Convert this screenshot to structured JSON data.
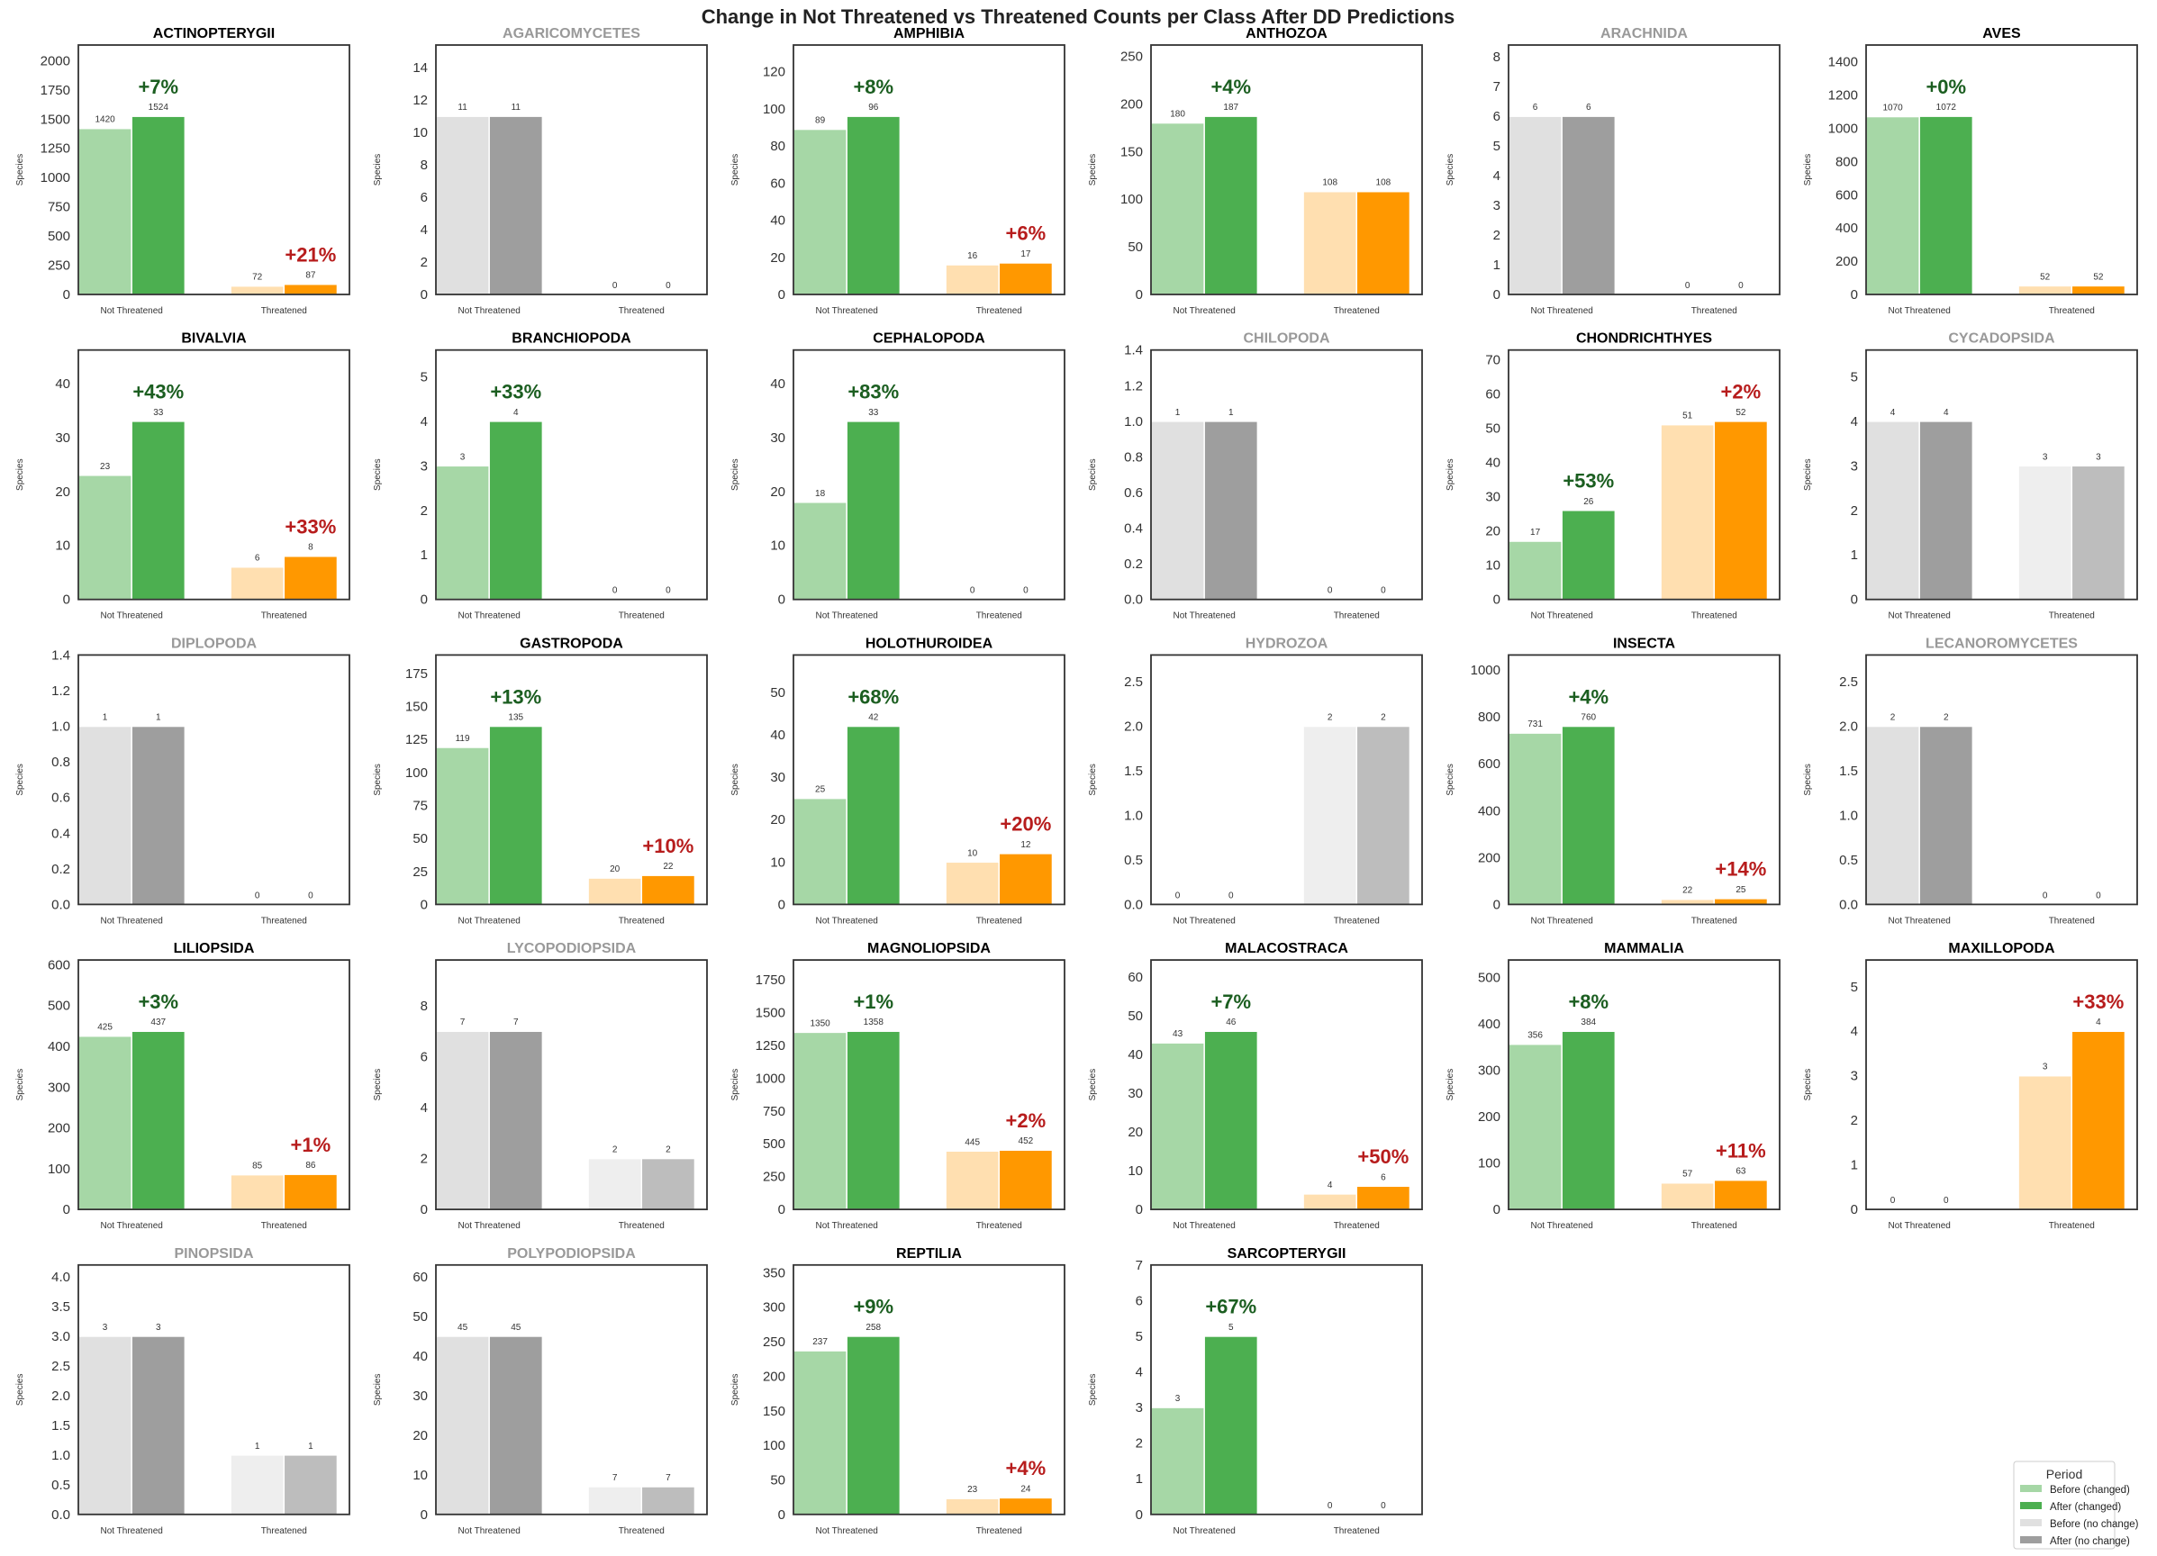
{
  "title": "Change in Not Threatened vs Threatened Counts per Class After DD Predictions",
  "legend": {
    "title": "Period",
    "entries": [
      {
        "label": "Before (changed)",
        "color": "#a6d7a6"
      },
      {
        "label": "After (changed)",
        "color": "#4caf50"
      },
      {
        "label": "Before (no change)",
        "color": "#e0e0e0"
      },
      {
        "label": "After (no change)",
        "color": "#9e9e9e"
      }
    ],
    "placement": "bottom-right"
  },
  "colors": {
    "nt_before": "#a6d7a6",
    "nt_after": "#4caf50",
    "t_before": "#ffdfb0",
    "t_after": "#ff9800",
    "nc_nt_before": "#e0e0e0",
    "nc_nt_after": "#9e9e9e",
    "nc_t_before": "#eeeeee",
    "nc_t_after": "#bdbdbd",
    "pct_up_nt": "#1b5e20",
    "pct_up_t": "#b71c1c",
    "title_changed": "#000000",
    "title_unchanged": "#999999"
  },
  "chart_data": {
    "type": "bar",
    "categories": [
      "Not Threatened",
      "Threatened"
    ],
    "ylabel": "Species",
    "grid": false,
    "panels": [
      {
        "title": "ACTINOPTERYGII",
        "changed": true,
        "nt": [
          1420,
          1524
        ],
        "t": [
          72,
          87
        ],
        "nt_pct": "+7%",
        "t_pct": "+21%",
        "ylim": [
          0,
          2134
        ],
        "yticks": [
          0,
          250,
          500,
          750,
          1000,
          1250,
          1500,
          1750,
          2000
        ]
      },
      {
        "title": "AGARICOMYCETES",
        "changed": false,
        "nt": [
          11,
          11
        ],
        "t": [
          0,
          0
        ],
        "ylim": [
          0,
          15.4
        ],
        "yticks": [
          0,
          2,
          4,
          6,
          8,
          10,
          12,
          14
        ]
      },
      {
        "title": "AMPHIBIA",
        "changed": true,
        "nt": [
          89,
          96
        ],
        "t": [
          16,
          17
        ],
        "nt_pct": "+8%",
        "t_pct": "+6%",
        "ylim": [
          0,
          134.4
        ],
        "yticks": [
          0,
          20,
          40,
          60,
          80,
          100,
          120
        ]
      },
      {
        "title": "ANTHOZOA",
        "changed": true,
        "nt": [
          180,
          187
        ],
        "t": [
          108,
          108
        ],
        "nt_pct": "+4%",
        "ylim": [
          0,
          261.8
        ],
        "yticks": [
          0,
          50,
          100,
          150,
          200,
          250
        ]
      },
      {
        "title": "ARACHNIDA",
        "changed": false,
        "nt": [
          6,
          6
        ],
        "t": [
          0,
          0
        ],
        "ylim": [
          0,
          8.4
        ],
        "yticks": [
          0,
          1,
          2,
          3,
          4,
          5,
          6,
          7,
          8
        ]
      },
      {
        "title": "AVES",
        "changed": true,
        "nt": [
          1070,
          1072
        ],
        "t": [
          52,
          52
        ],
        "nt_pct": "+0%",
        "ylim": [
          0,
          1500.8
        ],
        "yticks": [
          0,
          200,
          400,
          600,
          800,
          1000,
          1200,
          1400
        ]
      },
      {
        "title": "BIVALVIA",
        "changed": true,
        "nt": [
          23,
          33
        ],
        "t": [
          6,
          8
        ],
        "nt_pct": "+43%",
        "t_pct": "+33%",
        "ylim": [
          0,
          46.2
        ],
        "yticks": [
          0,
          10,
          20,
          30,
          40
        ]
      },
      {
        "title": "BRANCHIOPODA",
        "changed": true,
        "nt": [
          3,
          4
        ],
        "t": [
          0,
          0
        ],
        "nt_pct": "+33%",
        "ylim": [
          0,
          5.6
        ],
        "yticks": [
          0,
          1,
          2,
          3,
          4,
          5
        ]
      },
      {
        "title": "CEPHALOPODA",
        "changed": true,
        "nt": [
          18,
          33
        ],
        "t": [
          0,
          0
        ],
        "nt_pct": "+83%",
        "ylim": [
          0,
          46.2
        ],
        "yticks": [
          0,
          10,
          20,
          30,
          40
        ]
      },
      {
        "title": "CHILOPODA",
        "changed": false,
        "nt": [
          1,
          1
        ],
        "t": [
          0,
          0
        ],
        "ylim": [
          0,
          1.4
        ],
        "yticks": [
          "0.0",
          "0.2",
          "0.4",
          "0.6",
          "0.8",
          "1.0",
          "1.2",
          "1.4"
        ]
      },
      {
        "title": "CHONDRICHTHYES",
        "changed": true,
        "nt": [
          17,
          26
        ],
        "t": [
          51,
          52
        ],
        "nt_pct": "+53%",
        "t_pct": "+2%",
        "ylim": [
          0,
          72.8
        ],
        "yticks": [
          0,
          10,
          20,
          30,
          40,
          50,
          60,
          70
        ]
      },
      {
        "title": "CYCADOPSIDA",
        "changed": false,
        "nt": [
          4,
          4
        ],
        "t": [
          3,
          3
        ],
        "ylim": [
          0,
          5.6
        ],
        "yticks": [
          0,
          1,
          2,
          3,
          4,
          5
        ]
      },
      {
        "title": "DIPLOPODA",
        "changed": false,
        "nt": [
          1,
          1
        ],
        "t": [
          0,
          0
        ],
        "ylim": [
          0,
          1.4
        ],
        "yticks": [
          "0.0",
          "0.2",
          "0.4",
          "0.6",
          "0.8",
          "1.0",
          "1.2",
          "1.4"
        ]
      },
      {
        "title": "GASTROPODA",
        "changed": true,
        "nt": [
          119,
          135
        ],
        "t": [
          20,
          22
        ],
        "nt_pct": "+13%",
        "t_pct": "+10%",
        "ylim": [
          0,
          189
        ],
        "yticks": [
          0,
          25,
          50,
          75,
          100,
          125,
          150,
          175
        ]
      },
      {
        "title": "HOLOTHUROIDEA",
        "changed": true,
        "nt": [
          25,
          42
        ],
        "t": [
          10,
          12
        ],
        "nt_pct": "+68%",
        "t_pct": "+20%",
        "ylim": [
          0,
          58.8
        ],
        "yticks": [
          0,
          10,
          20,
          30,
          40,
          50
        ]
      },
      {
        "title": "HYDROZOA",
        "changed": false,
        "nt": [
          0,
          0
        ],
        "t": [
          2,
          2
        ],
        "ylim": [
          0,
          2.8
        ],
        "yticks": [
          "0.0",
          "0.5",
          "1.0",
          "1.5",
          "2.0",
          "2.5"
        ]
      },
      {
        "title": "INSECTA",
        "changed": true,
        "nt": [
          731,
          760
        ],
        "t": [
          22,
          25
        ],
        "nt_pct": "+4%",
        "t_pct": "+14%",
        "ylim": [
          0,
          1064
        ],
        "yticks": [
          0,
          200,
          400,
          600,
          800,
          1000
        ]
      },
      {
        "title": "LECANOROMYCETES",
        "changed": false,
        "nt": [
          2,
          2
        ],
        "t": [
          0,
          0
        ],
        "ylim": [
          0,
          2.8
        ],
        "yticks": [
          "0.0",
          "0.5",
          "1.0",
          "1.5",
          "2.0",
          "2.5"
        ]
      },
      {
        "title": "LILIOPSIDA",
        "changed": true,
        "nt": [
          425,
          437
        ],
        "t": [
          85,
          86
        ],
        "nt_pct": "+3%",
        "t_pct": "+1%",
        "ylim": [
          0,
          611.8
        ],
        "yticks": [
          0,
          100,
          200,
          300,
          400,
          500,
          600
        ]
      },
      {
        "title": "LYCOPODIOPSIDA",
        "changed": false,
        "nt": [
          7,
          7
        ],
        "t": [
          2,
          2
        ],
        "ylim": [
          0,
          9.8
        ],
        "yticks": [
          0,
          2,
          4,
          6,
          8
        ]
      },
      {
        "title": "MAGNOLIOPSIDA",
        "changed": true,
        "nt": [
          1350,
          1358
        ],
        "t": [
          445,
          452
        ],
        "nt_pct": "+1%",
        "t_pct": "+2%",
        "ylim": [
          0,
          1901
        ],
        "yticks": [
          0,
          250,
          500,
          750,
          1000,
          1250,
          1500,
          1750
        ]
      },
      {
        "title": "MALACOSTRACA",
        "changed": true,
        "nt": [
          43,
          46
        ],
        "t": [
          4,
          6
        ],
        "nt_pct": "+7%",
        "t_pct": "+50%",
        "ylim": [
          0,
          64.4
        ],
        "yticks": [
          0,
          10,
          20,
          30,
          40,
          50,
          60
        ]
      },
      {
        "title": "MAMMALIA",
        "changed": true,
        "nt": [
          356,
          384
        ],
        "t": [
          57,
          63
        ],
        "nt_pct": "+8%",
        "t_pct": "+11%",
        "ylim": [
          0,
          537.6
        ],
        "yticks": [
          0,
          100,
          200,
          300,
          400,
          500
        ]
      },
      {
        "title": "MAXILLOPODA",
        "changed": true,
        "nt": [
          0,
          0
        ],
        "t": [
          3,
          4
        ],
        "t_pct": "+33%",
        "ylim": [
          0,
          5.6
        ],
        "yticks": [
          0,
          1,
          2,
          3,
          4,
          5
        ]
      },
      {
        "title": "PINOPSIDA",
        "changed": false,
        "nt": [
          3,
          3
        ],
        "t": [
          1,
          1
        ],
        "ylim": [
          0,
          4.2
        ],
        "yticks": [
          "0.0",
          "0.5",
          "1.0",
          "1.5",
          "2.0",
          "2.5",
          "3.0",
          "3.5",
          "4.0"
        ]
      },
      {
        "title": "POLYPODIOPSIDA",
        "changed": false,
        "nt": [
          45,
          45
        ],
        "t": [
          7,
          7
        ],
        "ylim": [
          0,
          63
        ],
        "yticks": [
          0,
          10,
          20,
          30,
          40,
          50,
          60
        ]
      },
      {
        "title": "REPTILIA",
        "changed": true,
        "nt": [
          237,
          258
        ],
        "t": [
          23,
          24
        ],
        "nt_pct": "+9%",
        "t_pct": "+4%",
        "ylim": [
          0,
          361.2
        ],
        "yticks": [
          0,
          50,
          100,
          150,
          200,
          250,
          300,
          350
        ]
      },
      {
        "title": "SARCOPTERYGII",
        "changed": true,
        "nt": [
          3,
          5
        ],
        "t": [
          0,
          0
        ],
        "nt_pct": "+67%",
        "ylim": [
          0,
          7
        ],
        "yticks": [
          0,
          1,
          2,
          3,
          4,
          5,
          6,
          7
        ]
      }
    ]
  }
}
